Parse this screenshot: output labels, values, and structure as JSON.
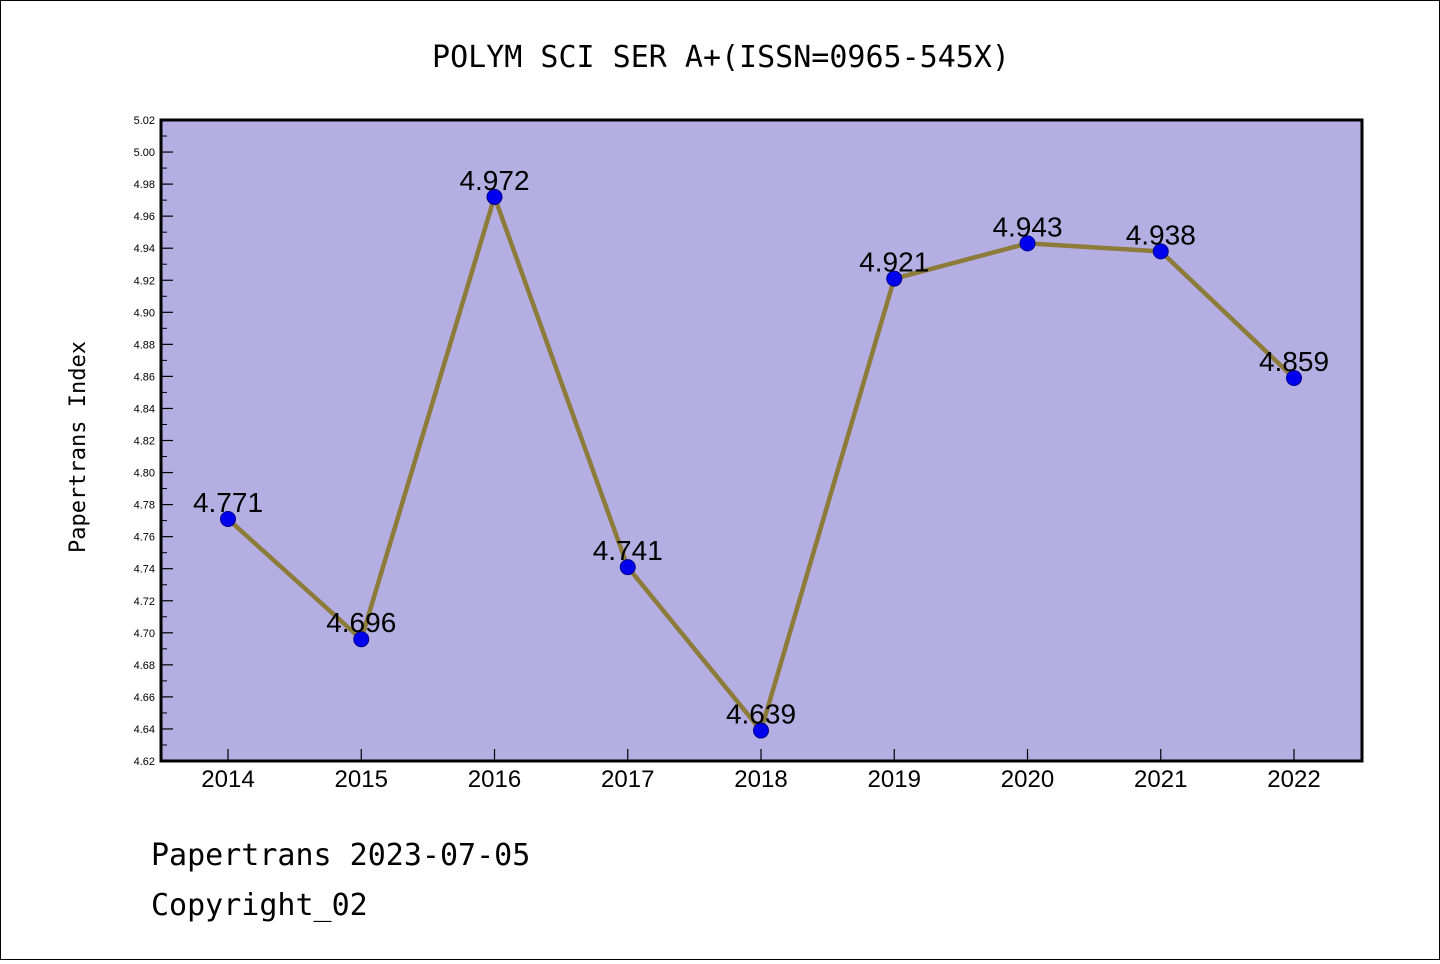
{
  "chart_data": {
    "type": "line",
    "title": "POLYM SCI SER A+(ISSN=0965-545X)",
    "ylabel": "Papertrans Index",
    "xlabel": "",
    "categories": [
      "2014",
      "2015",
      "2016",
      "2017",
      "2018",
      "2019",
      "2020",
      "2021",
      "2022"
    ],
    "series": [
      {
        "values": [
          4.771,
          4.696,
          4.972,
          4.741,
          4.639,
          4.921,
          4.943,
          4.938,
          4.859
        ],
        "labels": [
          "4.771",
          "4.696",
          "4.972",
          "4.741",
          "4.639",
          "4.921",
          "4.943",
          "4.938",
          "4.859"
        ]
      }
    ],
    "ylim": [
      4.62,
      5.02
    ],
    "yticks": [
      "4.62",
      "4.64",
      "4.66",
      "4.68",
      "4.70",
      "4.72",
      "4.74",
      "4.76",
      "4.78",
      "4.80",
      "4.82",
      "4.84",
      "4.86",
      "4.88",
      "4.90",
      "4.92",
      "4.94",
      "4.96",
      "4.98",
      "5.00",
      "5.02"
    ],
    "grid": false,
    "colors": {
      "plot_bg": "#b5aee2",
      "line": "#8d7b3a",
      "marker": "#0000ee"
    }
  },
  "footer": {
    "line1": "Papertrans 2023-07-05",
    "line2": "Copyright_02"
  }
}
